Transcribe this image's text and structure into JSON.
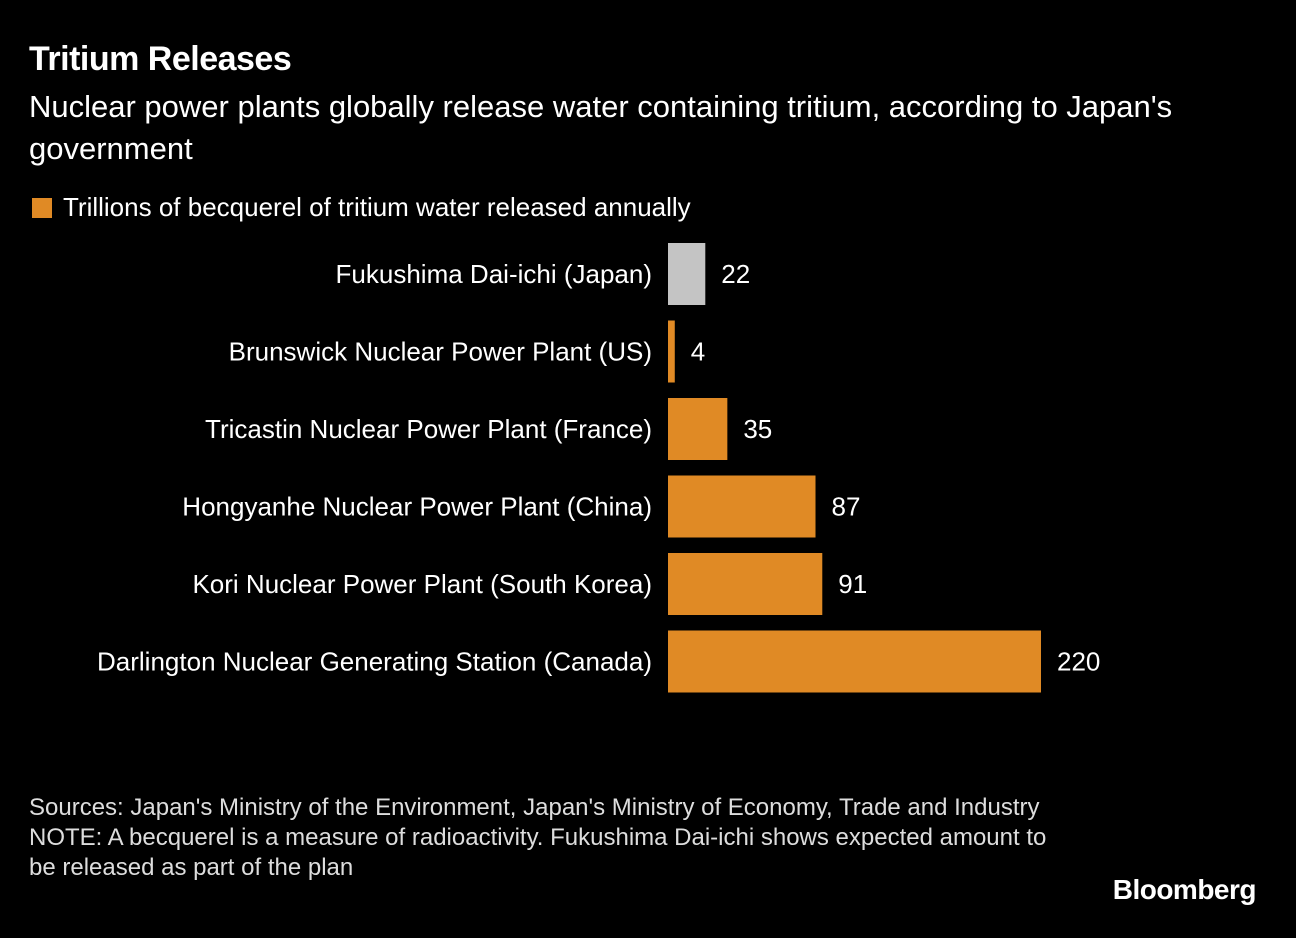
{
  "header": {
    "title": "Tritium Releases",
    "subtitle": "Nuclear power plants globally release water containing tritium, according to Japan's government"
  },
  "legend": {
    "label": "Trillions of becquerel of tritium water released annually",
    "color": "#e08a25"
  },
  "colors": {
    "background": "#000000",
    "highlight": "#c4c4c4",
    "bar": "#e08a25",
    "text": "#ffffff"
  },
  "chart_data": {
    "type": "bar",
    "orientation": "horizontal",
    "categories": [
      "Fukushima Dai-ichi (Japan)",
      "Brunswick Nuclear Power Plant (US)",
      "Tricastin Nuclear Power Plant (France)",
      "Hongyanhe Nuclear Power Plant (China)",
      "Kori Nuclear Power Plant (South Korea)",
      "Darlington Nuclear Generating Station (Canada)"
    ],
    "values": [
      22,
      4,
      35,
      87,
      91,
      220
    ],
    "highlighted_category": "Fukushima Dai-ichi (Japan)",
    "series": [
      {
        "name": "Trillions of becquerel of tritium water released annually",
        "values": [
          22,
          4,
          35,
          87,
          91,
          220
        ]
      }
    ],
    "data_labels": [
      "22",
      "4",
      "35",
      "87",
      "91",
      "220"
    ],
    "xlim": [
      0,
      220
    ],
    "grid": false,
    "axis_lines": false,
    "legend_position": "top-left"
  },
  "footer": {
    "sources": "Sources: Japan's Ministry of the Environment, Japan's Ministry of Economy, Trade and Industry",
    "note": "NOTE: A becquerel is a measure of radioactivity. Fukushima Dai-ichi shows expected amount to be released as part of the plan"
  },
  "brand": "Bloomberg"
}
